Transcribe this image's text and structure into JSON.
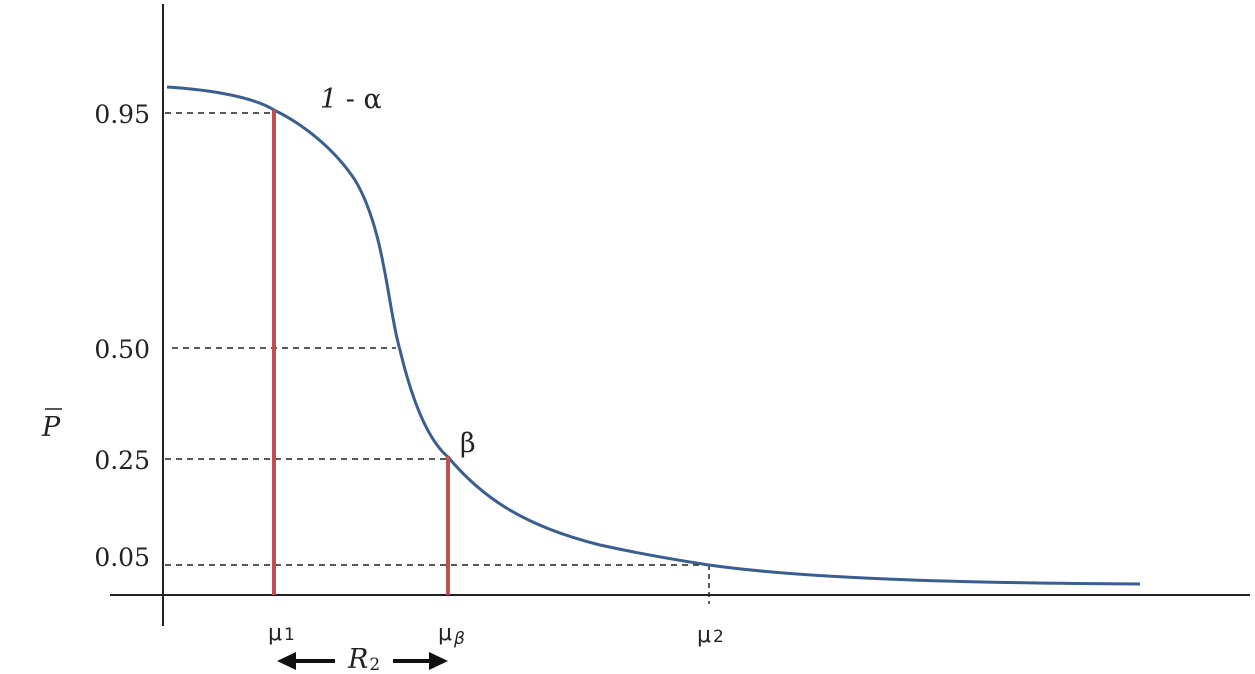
{
  "chart_data": {
    "type": "line",
    "ylabel": "P",
    "y_ticks": [
      {
        "value": 0.95,
        "label": "0.95"
      },
      {
        "value": 0.5,
        "label": "0.50"
      },
      {
        "value": 0.25,
        "label": "0.25"
      },
      {
        "value": 0.05,
        "label": "0.05"
      }
    ],
    "x_markers": [
      {
        "id": "mu1",
        "base": "μ",
        "sub": "1",
        "sub_italic": false
      },
      {
        "id": "mubeta",
        "base": "μ",
        "sub": "β",
        "sub_italic": true
      },
      {
        "id": "mu2",
        "base": "μ",
        "sub": "2",
        "sub_italic": false
      }
    ],
    "annotations": {
      "alpha_one": "1",
      "alpha_rest": " - α",
      "beta": "β"
    },
    "range_label": {
      "base": "R",
      "sub": "2"
    },
    "colors": {
      "curve": "#3a5f8f",
      "marker_line": "#c0504d",
      "axis": "#222222",
      "guide": "#222222"
    },
    "grid": false,
    "legend": "none"
  }
}
